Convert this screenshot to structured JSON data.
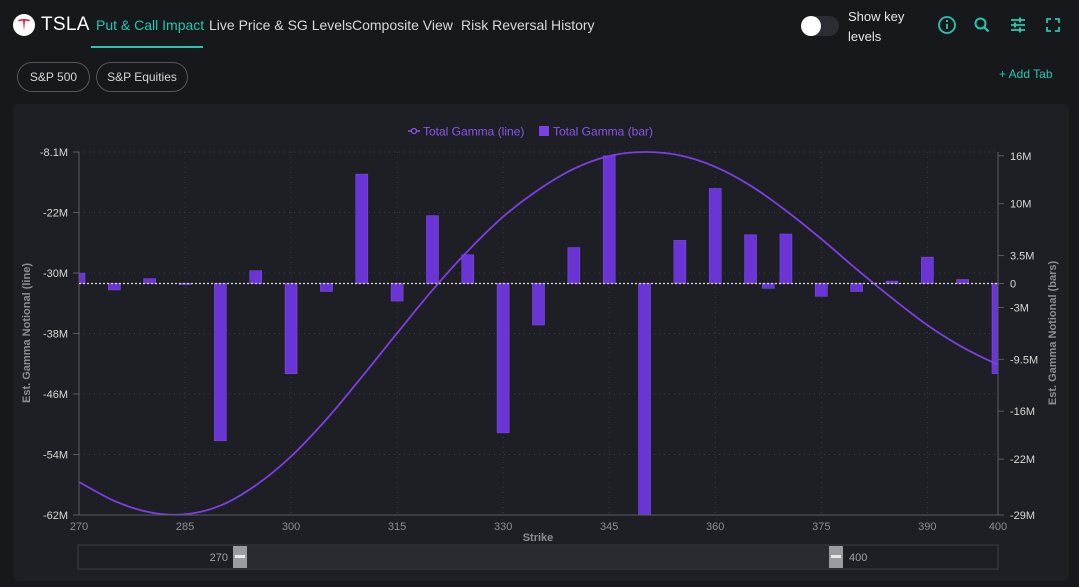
{
  "header": {
    "ticker": "TSLA",
    "tabs": [
      {
        "label": "Put & Call Impact",
        "active": true
      },
      {
        "label": "Live Price & SG Levels",
        "active": false
      },
      {
        "label": "Composite View",
        "active": false
      },
      {
        "label": "Risk Reversal",
        "active": false
      },
      {
        "label": "History",
        "active": false
      }
    ],
    "toggle_label": "Show key levels",
    "toggle_on": false,
    "icons": [
      "info-icon",
      "search-icon",
      "sliders-icon",
      "fullscreen-icon"
    ]
  },
  "subtabs": [
    {
      "label": "S&P 500"
    },
    {
      "label": "S&P Equities"
    }
  ],
  "add_tab_label": "+ Add Tab",
  "colors": {
    "accent": "#26c6b0",
    "series": "#7b3fe4",
    "background": "#17181c",
    "panel": "#1e1f24"
  },
  "chart_data": {
    "type": "bar",
    "legend": [
      "Total Gamma (line)",
      "Total Gamma (bar)"
    ],
    "legend_position": "top-center",
    "xlabel": "Strike",
    "ylabel_left": "Est. Gamma Notional (line)",
    "ylabel_right": "Est. Gamma Notional (bars)",
    "xlim": [
      270,
      400
    ],
    "x_ticks": [
      "270",
      "285",
      "300",
      "315",
      "330",
      "345",
      "360",
      "375",
      "390",
      "400"
    ],
    "left_ticks": [
      "-8.1M",
      "-22M",
      "-30M",
      "-38M",
      "-46M",
      "-54M",
      "-62M"
    ],
    "right_ticks": [
      "16M",
      "10M",
      "3.5M",
      "0",
      "-3M",
      "-9.5M",
      "-16M",
      "-22M",
      "-29M"
    ],
    "grid": true,
    "bar_strikes": [
      270,
      275,
      280,
      285,
      290,
      295,
      300,
      305,
      310,
      315,
      320,
      325,
      330,
      335,
      340,
      345,
      350,
      355,
      360,
      365,
      367.5,
      370,
      375,
      380,
      385,
      390,
      395,
      400
    ],
    "bar_values": [
      1.3,
      -0.8,
      0.6,
      -0.1,
      -19.7,
      1.6,
      -11.3,
      -1.0,
      13.7,
      -2.2,
      8.5,
      3.6,
      -18.7,
      -5.2,
      4.5,
      16.0,
      -29.0,
      5.4,
      11.9,
      6.1,
      -0.6,
      6.2,
      -1.6,
      -1.0,
      0.3,
      3.3,
      0.5,
      -11.3
    ],
    "line_points": [
      [
        270,
        -57.1
      ],
      [
        275,
        -59.9
      ],
      [
        280,
        -61.6
      ],
      [
        285,
        -61.9
      ],
      [
        290,
        -60.6
      ],
      [
        295,
        -57.6
      ],
      [
        300,
        -53.3
      ],
      [
        305,
        -47.8
      ],
      [
        310,
        -41.5
      ],
      [
        315,
        -35.0
      ],
      [
        320,
        -28.6
      ],
      [
        325,
        -22.8
      ],
      [
        330,
        -17.7
      ],
      [
        335,
        -13.7
      ],
      [
        340,
        -10.6
      ],
      [
        345,
        -8.7
      ],
      [
        350,
        -8.1
      ],
      [
        355,
        -8.6
      ],
      [
        360,
        -10.3
      ],
      [
        365,
        -13.1
      ],
      [
        370,
        -16.8
      ],
      [
        375,
        -21.0
      ],
      [
        380,
        -25.5
      ],
      [
        385,
        -29.8
      ],
      [
        390,
        -33.8
      ],
      [
        395,
        -37.1
      ],
      [
        400,
        -39.7
      ]
    ]
  },
  "range_slider": {
    "min_label": "270",
    "max_label": "400"
  }
}
